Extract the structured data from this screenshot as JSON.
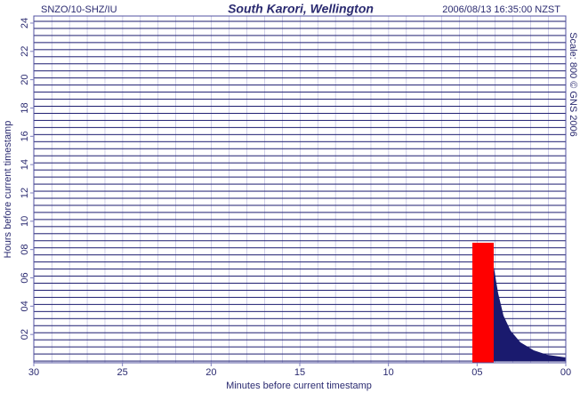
{
  "chart_data": {
    "type": "helicorder",
    "station": "SNZO/10-SHZ/IU",
    "title": "South Karori, Wellington",
    "timestamp": "2006/08/13 16:35:00 NZST",
    "side_note": "Scale: 800  © GNS 2006",
    "x_label": "Minutes before current timestamp",
    "y_label": "Hours before current timestamp",
    "xlim": [
      30,
      0
    ],
    "xticks": [
      30,
      25,
      20,
      15,
      10,
      {
        "value": 5,
        "label": "05"
      },
      {
        "value": 0,
        "label": "00"
      }
    ],
    "ylim": [
      0,
      24.5
    ],
    "yticks": [
      24,
      22,
      20,
      18,
      16,
      14,
      12,
      10,
      {
        "value": 8,
        "label": "08"
      },
      {
        "value": 6,
        "label": "06"
      },
      {
        "value": 4,
        "label": "04"
      },
      {
        "value": 2,
        "label": "02"
      }
    ],
    "trace_color": "#1a1a6e",
    "grid_color": "#8080c0",
    "event_color": "#ff0000"
  }
}
